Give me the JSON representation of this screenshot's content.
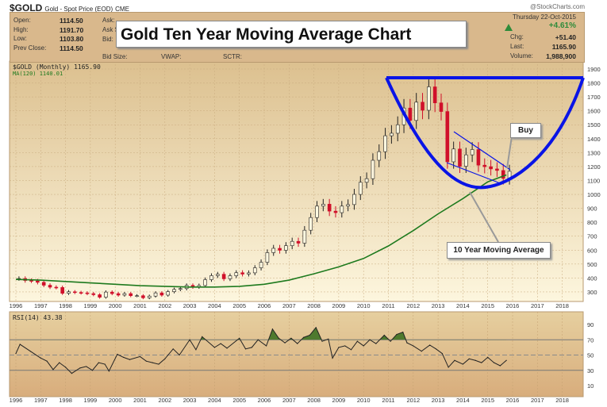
{
  "header": {
    "symbol": "$GOLD",
    "name": "Gold - Spot Price (EOD)",
    "exchange": "CME",
    "credit": "@StockCharts.com",
    "fields": [
      {
        "label": "Open:",
        "value": "1114.50"
      },
      {
        "label": "High:",
        "value": "1191.70"
      },
      {
        "label": "Low:",
        "value": "1103.80"
      },
      {
        "label": "Prev Close:",
        "value": "1114.50"
      }
    ],
    "extra_labels": [
      "Ask:",
      "Ask S",
      "Bid:",
      "Bid Size:",
      "VWAP:",
      "SCTR:"
    ],
    "date": "Thursday  22-Oct-2015",
    "change_pct": "+4.61%",
    "chg_label": "Chg:",
    "chg": "+51.40",
    "last_label": "Last:",
    "last": "1165.90",
    "volume_label": "Volume:",
    "volume": "1,988,900",
    "up_color": "#2e8b3a"
  },
  "annotations": {
    "title": "Gold Ten Year Moving Average Chart",
    "buy": "Buy",
    "ma_label": "10 Year Moving Average",
    "cup_color": "#0a14e6"
  },
  "chart_data": [
    {
      "type": "line",
      "panel": "price",
      "legend": "$GOLD (Monthly) 1165.90",
      "ma_legend": "MA(120) 1140.01",
      "ylim": [
        250,
        1950
      ],
      "yticks": [
        300,
        400,
        500,
        600,
        700,
        800,
        900,
        1000,
        1100,
        1200,
        1300,
        1400,
        1500,
        1600,
        1700,
        1800,
        1900
      ],
      "xticks": [
        "1996",
        "1997",
        "1998",
        "1999",
        "2000",
        "2001",
        "2002",
        "2003",
        "2004",
        "2005",
        "2006",
        "2007",
        "2008",
        "2009",
        "2010",
        "2011",
        "2012",
        "2013",
        "2014",
        "2015",
        "2016",
        "2017",
        "2018"
      ],
      "grid": true,
      "series": [
        {
          "name": "$GOLD",
          "color": "#222",
          "down_color": "#d0102a",
          "x_start": "1996-01",
          "step_months": 3,
          "values": [
            396,
            382,
            379,
            369,
            348,
            334,
            332,
            290,
            301,
            296,
            293,
            288,
            280,
            262,
            299,
            288,
            277,
            288,
            273,
            273,
            258,
            270,
            293,
            277,
            302,
            318,
            324,
            347,
            336,
            346,
            388,
            417,
            427,
            394,
            416,
            438,
            428,
            437,
            473,
            513,
            582,
            613,
            599,
            632,
            663,
            650,
            743,
            834,
            916,
            930,
            880,
            869,
            916,
            927,
            1000,
            1087,
            1113,
            1245,
            1307,
            1421,
            1439,
            1500,
            1620,
            1531,
            1662,
            1604,
            1772,
            1657,
            1595,
            1234,
            1326,
            1202,
            1284,
            1322,
            1210,
            1199,
            1183,
            1172,
            1115,
            1166
          ]
        },
        {
          "name": "MA(120)",
          "color": "#1e7a1e",
          "x_start": "1996-01",
          "step_months": 12,
          "values": [
            390,
            385,
            375,
            365,
            355,
            345,
            340,
            335,
            335,
            340,
            355,
            385,
            430,
            480,
            540,
            630,
            740,
            860,
            970,
            1090
          ],
          "last": [
            "2015-10",
            1140
          ]
        }
      ]
    },
    {
      "type": "line",
      "panel": "rsi",
      "legend": "RSI(14) 43.38",
      "ylim": [
        0,
        100
      ],
      "yticks": [
        10,
        30,
        50,
        70,
        90
      ],
      "ref_lines": [
        30,
        50,
        70
      ],
      "x": [
        "1996-01",
        "1996-03",
        "1996-08",
        "1997-01",
        "1997-04",
        "1997-07",
        "1997-10",
        "1998-01",
        "1998-04",
        "1998-08",
        "1998-11",
        "1999-02",
        "1999-05",
        "1999-08",
        "1999-10",
        "2000-02",
        "2000-05",
        "2000-08",
        "2001-01",
        "2001-04",
        "2001-07",
        "2001-10",
        "2002-01",
        "2002-05",
        "2002-08",
        "2003-01",
        "2003-04",
        "2003-07",
        "2004-01",
        "2004-04",
        "2004-07",
        "2005-01",
        "2005-04",
        "2005-07",
        "2005-10",
        "2006-02",
        "2006-05",
        "2006-08",
        "2006-11",
        "2007-02",
        "2007-05",
        "2007-08",
        "2007-11",
        "2008-02",
        "2008-05",
        "2008-08",
        "2008-10",
        "2009-01",
        "2009-04",
        "2009-07",
        "2009-10",
        "2010-01",
        "2010-04",
        "2010-07",
        "2010-11",
        "2011-02",
        "2011-05",
        "2011-08",
        "2011-10",
        "2012-01",
        "2012-05",
        "2012-09",
        "2012-12",
        "2013-03",
        "2013-06",
        "2013-09",
        "2014-01",
        "2014-04",
        "2014-07",
        "2014-10",
        "2015-01",
        "2015-04",
        "2015-07",
        "2015-10"
      ],
      "values": [
        52,
        64,
        55,
        46,
        42,
        31,
        40,
        34,
        26,
        33,
        35,
        30,
        40,
        38,
        29,
        51,
        47,
        44,
        48,
        42,
        40,
        38,
        45,
        58,
        50,
        70,
        57,
        74,
        60,
        65,
        59,
        72,
        58,
        60,
        70,
        62,
        84,
        72,
        66,
        72,
        65,
        73,
        76,
        86,
        68,
        71,
        46,
        60,
        62,
        57,
        68,
        62,
        70,
        65,
        76,
        68,
        77,
        80,
        66,
        62,
        55,
        63,
        58,
        52,
        34,
        43,
        38,
        45,
        43,
        40,
        47,
        40,
        36,
        43
      ]
    }
  ]
}
